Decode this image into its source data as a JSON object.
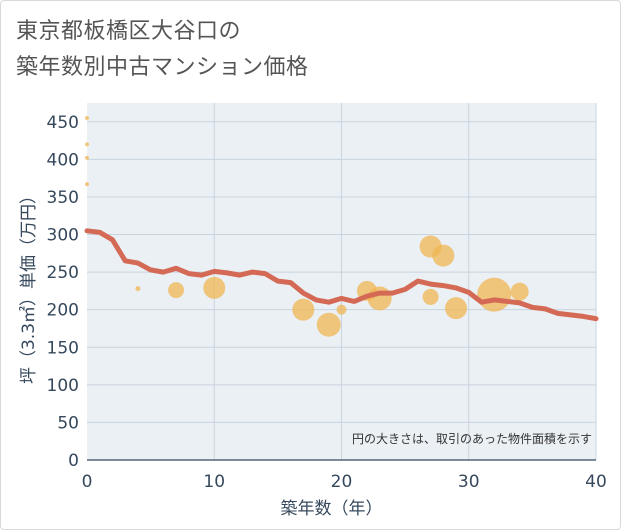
{
  "title": {
    "line1": "東京都板橋区大谷口の",
    "line2": "築年数別中古マンション価格"
  },
  "chart_data": {
    "type": "scatter",
    "title": "東京都板橋区大谷口の築年数別中古マンション価格",
    "xlabel": "築年数（年）",
    "ylabel": "坪（3.3㎡）単価（万円）",
    "xlim": [
      0,
      40
    ],
    "ylim": [
      0,
      475
    ],
    "x_ticks": [
      0,
      10,
      20,
      30,
      40
    ],
    "y_ticks": [
      0,
      50,
      100,
      150,
      200,
      250,
      300,
      350,
      400,
      450
    ],
    "grid": true,
    "annotation": "円の大きさは、取引のあった物件面積を示す",
    "colors": {
      "bubble": "#f0b552",
      "line": "#d46a55",
      "axis_text": "#36485c",
      "grid": "#c8d4de",
      "plot_bg": "#ebf0f5"
    },
    "series": [
      {
        "type": "bubble",
        "points": [
          {
            "x": 0,
            "y": 455,
            "size": 2
          },
          {
            "x": 0,
            "y": 420,
            "size": 2
          },
          {
            "x": 0,
            "y": 402,
            "size": 2
          },
          {
            "x": 0,
            "y": 367,
            "size": 2
          },
          {
            "x": 4,
            "y": 228,
            "size": 2.5
          },
          {
            "x": 7,
            "y": 226,
            "size": 8
          },
          {
            "x": 10,
            "y": 229,
            "size": 11
          },
          {
            "x": 17,
            "y": 200,
            "size": 11
          },
          {
            "x": 19,
            "y": 180,
            "size": 12
          },
          {
            "x": 20,
            "y": 200,
            "size": 5
          },
          {
            "x": 22,
            "y": 225,
            "size": 10
          },
          {
            "x": 23,
            "y": 215,
            "size": 12
          },
          {
            "x": 27,
            "y": 284,
            "size": 11
          },
          {
            "x": 27,
            "y": 217,
            "size": 8
          },
          {
            "x": 28,
            "y": 272,
            "size": 11
          },
          {
            "x": 29,
            "y": 202,
            "size": 11
          },
          {
            "x": 32,
            "y": 220,
            "size": 17
          },
          {
            "x": 34,
            "y": 224,
            "size": 9
          }
        ]
      },
      {
        "type": "line",
        "x": [
          0,
          1,
          2,
          3,
          4,
          5,
          6,
          7,
          8,
          9,
          10,
          11,
          12,
          13,
          14,
          15,
          16,
          17,
          18,
          19,
          20,
          21,
          22,
          23,
          24,
          25,
          26,
          27,
          28,
          29,
          30,
          31,
          32,
          33,
          34,
          35,
          36,
          37,
          38,
          39,
          40
        ],
        "y": [
          305,
          303,
          293,
          265,
          262,
          253,
          250,
          255,
          248,
          246,
          251,
          249,
          246,
          250,
          248,
          238,
          236,
          222,
          213,
          210,
          215,
          211,
          218,
          222,
          222,
          227,
          238,
          234,
          232,
          229,
          223,
          210,
          213,
          211,
          209,
          203,
          201,
          195,
          193,
          191,
          188
        ]
      }
    ]
  }
}
